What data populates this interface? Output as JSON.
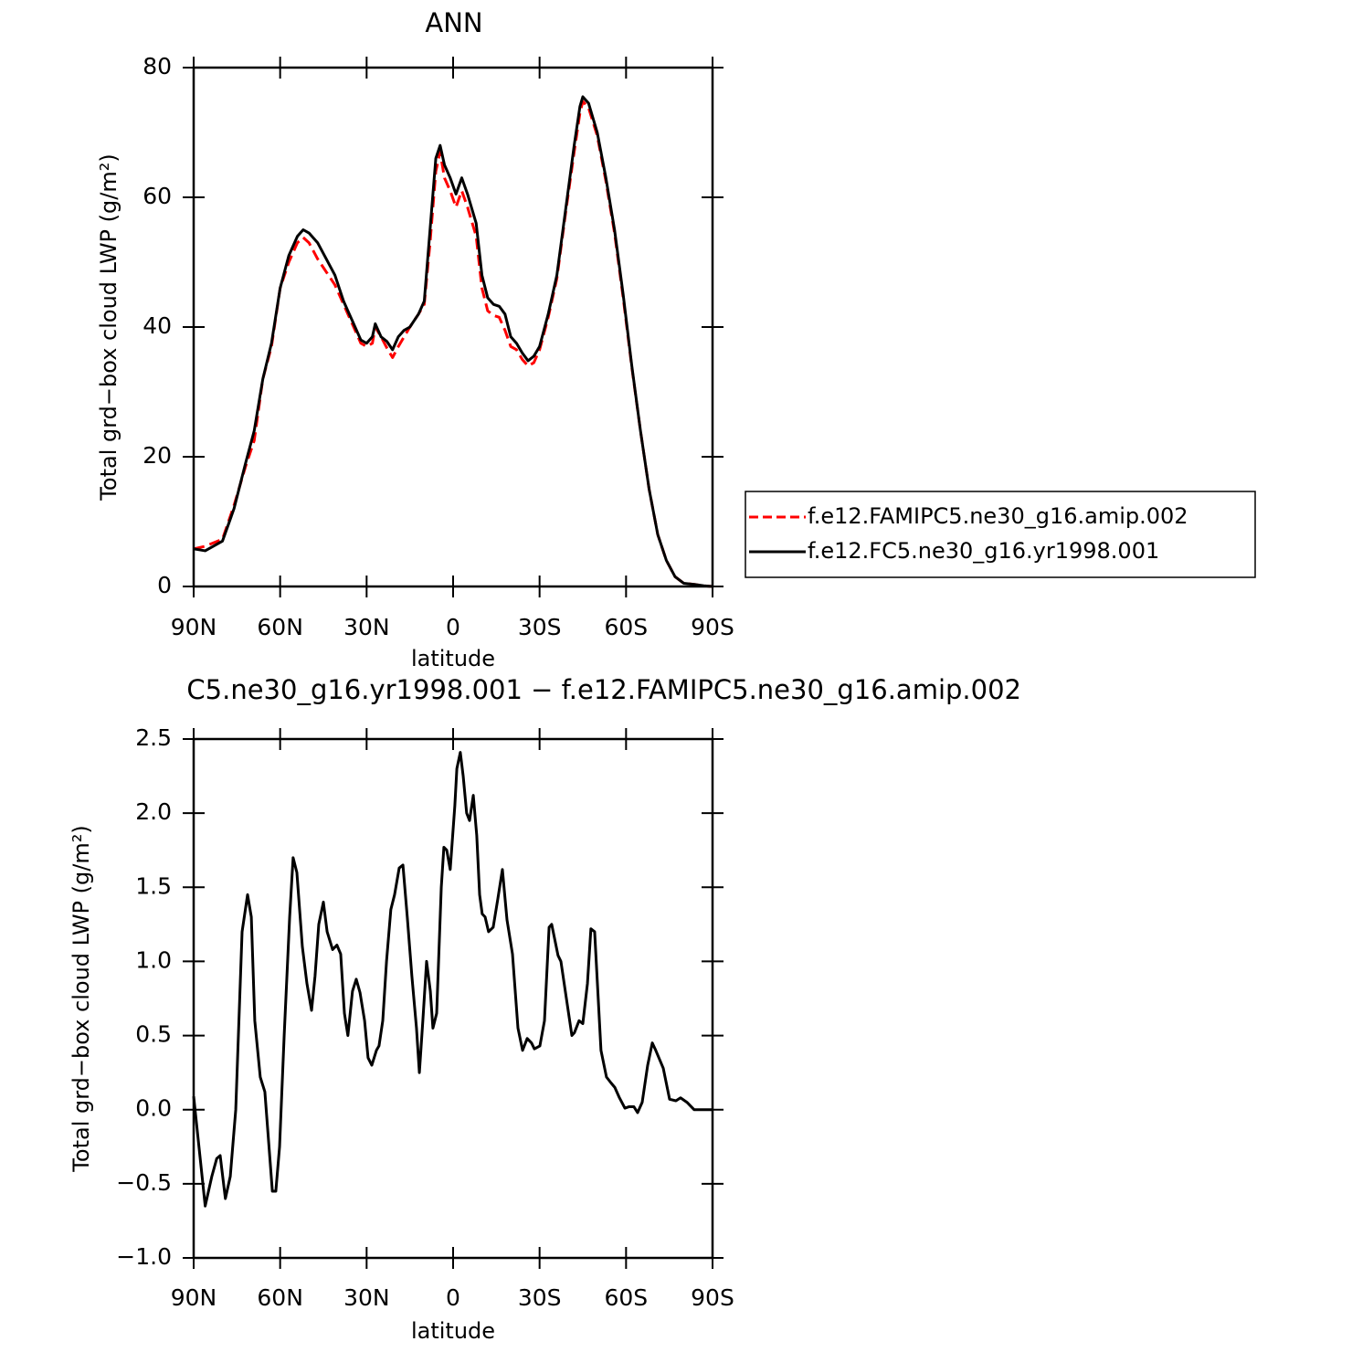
{
  "chart_data": [
    {
      "type": "line",
      "title": "ANN",
      "xlabel": "latitude",
      "ylabel": "Total grd−box cloud LWP (g/m²)",
      "xlim": [
        90,
        -90
      ],
      "ylim": [
        0,
        80
      ],
      "xticks": [
        {
          "value": 90,
          "label": "90N"
        },
        {
          "value": 60,
          "label": "60N"
        },
        {
          "value": 30,
          "label": "30N"
        },
        0,
        {
          "value": -30,
          "label": "30S"
        },
        {
          "value": -60,
          "label": "60S"
        },
        {
          "value": -90,
          "label": "90S"
        }
      ],
      "yticks": [
        0,
        20,
        40,
        60,
        80
      ],
      "legend": "outside-right",
      "x": [
        90,
        86,
        80,
        76,
        72,
        69,
        66,
        63,
        60,
        57,
        54,
        52,
        50,
        47,
        44,
        41,
        38,
        35,
        32,
        30,
        28,
        27,
        25,
        23,
        21,
        19,
        17,
        15,
        12,
        10,
        8,
        6,
        4.5,
        3,
        1,
        -1,
        -3,
        -5,
        -8,
        -10,
        -12,
        -14,
        -16,
        -18,
        -20,
        -22,
        -24,
        -26,
        -28,
        -30,
        -33,
        -36,
        -39,
        -42,
        -44,
        -45,
        -47,
        -50,
        -53,
        -56,
        -59,
        -62,
        -65,
        -68,
        -71,
        -74,
        -77,
        -80,
        -84,
        -87,
        -90
      ],
      "series": [
        {
          "name": "f.e12.FAMIPC5.ne30_g16.amip.002",
          "color": "#ff0000",
          "dash": true,
          "values": [
            5.8,
            6.2,
            7.3,
            12.5,
            18.5,
            22.5,
            32,
            37,
            46,
            50,
            53,
            53.8,
            53,
            50.5,
            48.5,
            46.5,
            43.5,
            40.5,
            37.5,
            37,
            37.5,
            40,
            38.5,
            36.8,
            35.3,
            37,
            38.5,
            40,
            42,
            43.5,
            53,
            64,
            67,
            63,
            61,
            58.5,
            61,
            58.5,
            54,
            46,
            42.5,
            41.8,
            41.5,
            39.5,
            37,
            36.5,
            35,
            34,
            34.5,
            36.5,
            41.5,
            47.5,
            57.5,
            67,
            73,
            74.8,
            73.8,
            69.5,
            62.5,
            54.5,
            44.5,
            33.8,
            24,
            15,
            8,
            4,
            1.5,
            0.5,
            0.3,
            0.1,
            0
          ]
        },
        {
          "name": "f.e12.FC5.ne30_g16.yr1998.001",
          "color": "#000000",
          "dash": false,
          "values": [
            5.8,
            5.5,
            7,
            12,
            19,
            24,
            32,
            37.5,
            46,
            51,
            54,
            55,
            54.5,
            53,
            50.5,
            48,
            44,
            41,
            38,
            37.5,
            38.5,
            40.5,
            38.5,
            37.8,
            36.5,
            38.5,
            39.5,
            40,
            42,
            44,
            55,
            66,
            68,
            65,
            63,
            60.5,
            63,
            60.5,
            56,
            48,
            44.5,
            43.5,
            43.2,
            42,
            38.5,
            37.5,
            36,
            34.8,
            35.5,
            37,
            42,
            48,
            58,
            68,
            74,
            75.5,
            74.5,
            70,
            63,
            55,
            45,
            34,
            24,
            15,
            8,
            4,
            1.5,
            0.5,
            0.3,
            0.1,
            0
          ]
        }
      ]
    },
    {
      "type": "line",
      "title": "C5.ne30_g16.yr1998.001 − f.e12.FAMIPC5.ne30_g16.amip.002",
      "xlabel": "latitude",
      "ylabel": "Total grd−box cloud LWP (g/m²)",
      "xlim": [
        90,
        -90
      ],
      "ylim": [
        -1.0,
        2.5
      ],
      "xticks": [
        {
          "value": 90,
          "label": "90N"
        },
        {
          "value": 60,
          "label": "60N"
        },
        {
          "value": 30,
          "label": "30N"
        },
        0,
        {
          "value": -30,
          "label": "30S"
        },
        {
          "value": -60,
          "label": "60S"
        },
        {
          "value": -90,
          "label": "90S"
        }
      ],
      "yticks": [
        {
          "value": -1.0,
          "label": "−1.0"
        },
        {
          "value": -0.5,
          "label": "−0.5"
        },
        {
          "value": 0,
          "label": "0.0"
        },
        0.5,
        {
          "value": 1.0,
          "label": "1.0"
        },
        1.5,
        {
          "value": 2.0,
          "label": "2.0"
        },
        2.5
      ],
      "x": [
        90,
        86,
        83.7,
        82,
        80.8,
        79,
        77.3,
        75.4,
        73.2,
        71.3,
        70,
        68.8,
        66.9,
        65.3,
        62.7,
        61.5,
        60.2,
        58.6,
        56.7,
        55.5,
        54.2,
        52.3,
        50.7,
        49.1,
        47.9,
        46.6,
        45,
        43.7,
        41.8,
        40.3,
        39,
        37.7,
        36.5,
        34.9,
        33.6,
        32.3,
        30.7,
        29.5,
        28.2,
        26.6,
        25.7,
        24.4,
        23.1,
        21.6,
        20.3,
        18.7,
        17.4,
        15.9,
        14.3,
        12.7,
        11.7,
        10.5,
        9.2,
        7.9,
        7,
        5.7,
        4.1,
        3.2,
        2.2,
        1,
        -0.6,
        -1.3,
        -2.5,
        -3.5,
        -4.7,
        -5.7,
        -7,
        -8.2,
        -9.2,
        -10.1,
        -11.1,
        -12.3,
        -13.9,
        -15.5,
        -17.1,
        -18.7,
        -20.6,
        -22.5,
        -24.1,
        -25.7,
        -27.2,
        -28.2,
        -30.1,
        -31.7,
        -33.3,
        -34.2,
        -36.4,
        -37.4,
        -39.3,
        -41.2,
        -42.1,
        -43.7,
        -45,
        -46.6,
        -47.8,
        -49.1,
        -51.3,
        -53.2,
        -54.8,
        -56.1,
        -57.7,
        -59.6,
        -61.1,
        -62.7,
        -64,
        -65.6,
        -67.5,
        -69.1,
        -70.3,
        -72.9,
        -75.1,
        -77.3,
        -78.9,
        -81.1,
        -83.6,
        -86.8,
        -90
      ],
      "series": [
        {
          "color": "#000000",
          "dash": false,
          "values": [
            0.09,
            -0.65,
            -0.45,
            -0.33,
            -0.31,
            -0.6,
            -0.45,
            0,
            1.2,
            1.45,
            1.3,
            0.6,
            0.22,
            0.12,
            -0.55,
            -0.55,
            -0.25,
            0.5,
            1.3,
            1.7,
            1.6,
            1.1,
            0.85,
            0.67,
            0.9,
            1.25,
            1.4,
            1.2,
            1.08,
            1.11,
            1.05,
            0.65,
            0.5,
            0.8,
            0.88,
            0.79,
            0.6,
            0.35,
            0.3,
            0.4,
            0.43,
            0.6,
            1.0,
            1.35,
            1.45,
            1.63,
            1.65,
            1.3,
            0.9,
            0.55,
            0.25,
            0.6,
            1.0,
            0.8,
            0.55,
            0.65,
            1.5,
            1.77,
            1.75,
            1.62,
            2.05,
            2.3,
            2.41,
            2.25,
            2.0,
            1.95,
            2.12,
            1.85,
            1.45,
            1.32,
            1.3,
            1.2,
            1.23,
            1.42,
            1.62,
            1.28,
            1.05,
            0.55,
            0.4,
            0.48,
            0.45,
            0.41,
            0.43,
            0.6,
            1.23,
            1.25,
            1.04,
            1.0,
            0.75,
            0.5,
            0.52,
            0.6,
            0.58,
            0.85,
            1.22,
            1.2,
            0.4,
            0.22,
            0.18,
            0.15,
            0.08,
            0.01,
            0.02,
            0.02,
            -0.02,
            0.05,
            0.3,
            0.45,
            0.4,
            0.28,
            0.07,
            0.06,
            0.08,
            0.05,
            0,
            0,
            0
          ]
        }
      ]
    }
  ]
}
